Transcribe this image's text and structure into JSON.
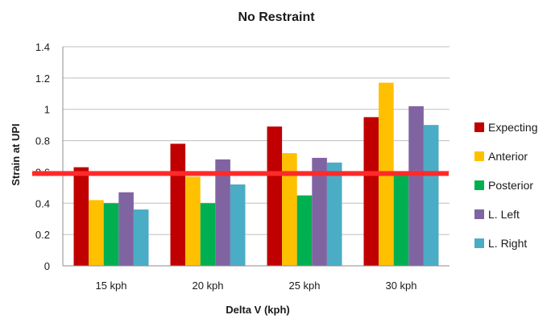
{
  "chart_data": {
    "type": "bar",
    "title": "No Restraint",
    "xlabel": "Delta V (kph)",
    "ylabel": "Strain at UPI",
    "categories": [
      "15 kph",
      "20 kph",
      "25 kph",
      "30 kph"
    ],
    "ylim": [
      0,
      1.4
    ],
    "yticks": [
      "0",
      "0.2",
      "0.4",
      "0.6",
      "0.8",
      "1",
      "1.2",
      "1.4"
    ],
    "grid": true,
    "legend_position": "right",
    "series": [
      {
        "name": "Expecting",
        "color": "#C00000",
        "values": [
          0.63,
          0.78,
          0.89,
          0.95
        ]
      },
      {
        "name": "Anterior",
        "color": "#FFC000",
        "values": [
          0.42,
          0.57,
          0.72,
          1.17
        ]
      },
      {
        "name": "Posterior",
        "color": "#00B050",
        "values": [
          0.4,
          0.4,
          0.45,
          0.59
        ]
      },
      {
        "name": "L. Left",
        "color": "#8064A2",
        "values": [
          0.47,
          0.68,
          0.69,
          1.02
        ]
      },
      {
        "name": "L. Right",
        "color": "#4BACC6",
        "values": [
          0.36,
          0.52,
          0.66,
          0.9
        ]
      }
    ],
    "reference_line": {
      "value": 0.59,
      "color": "#FF2A2A"
    }
  }
}
